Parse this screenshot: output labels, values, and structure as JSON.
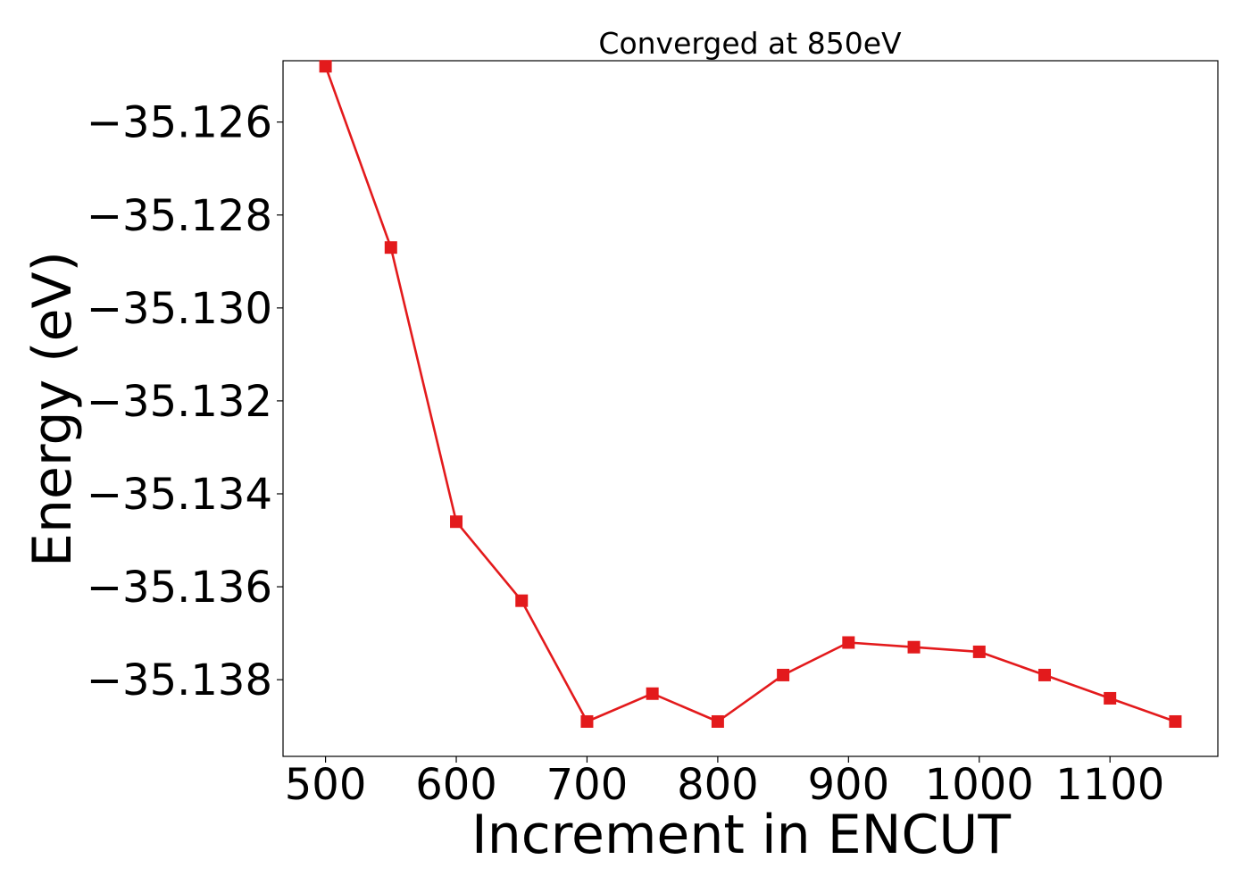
{
  "chart_data": {
    "type": "line",
    "title": "Converged at 850eV",
    "xlabel": "Increment in ENCUT",
    "ylabel": "Energy (eV)",
    "xlim": [
      467.5,
      1182.5
    ],
    "ylim": [
      -35.13965,
      -35.12468
    ],
    "x_ticks": [
      500,
      600,
      700,
      800,
      900,
      1000,
      1100
    ],
    "x_tick_labels": [
      "500",
      "600",
      "700",
      "800",
      "900",
      "1000",
      "1100"
    ],
    "y_ticks": [
      -35.126,
      -35.128,
      -35.13,
      -35.132,
      -35.134,
      -35.136,
      -35.138
    ],
    "y_tick_labels": [
      "−35.126",
      "−35.128",
      "−35.130",
      "−35.132",
      "−35.134",
      "−35.136",
      "−35.138"
    ],
    "grid": false,
    "series": [
      {
        "color": "#e31a1c",
        "marker": "square",
        "x": [
          500,
          550,
          600,
          650,
          700,
          750,
          800,
          850,
          900,
          950,
          1000,
          1050,
          1100,
          1150
        ],
        "y": [
          -35.1248,
          -35.1287,
          -35.1346,
          -35.1363,
          -35.1389,
          -35.1383,
          -35.1389,
          -35.1379,
          -35.1372,
          -35.1373,
          -35.1374,
          -35.1379,
          -35.1384,
          -35.1389
        ]
      }
    ]
  }
}
